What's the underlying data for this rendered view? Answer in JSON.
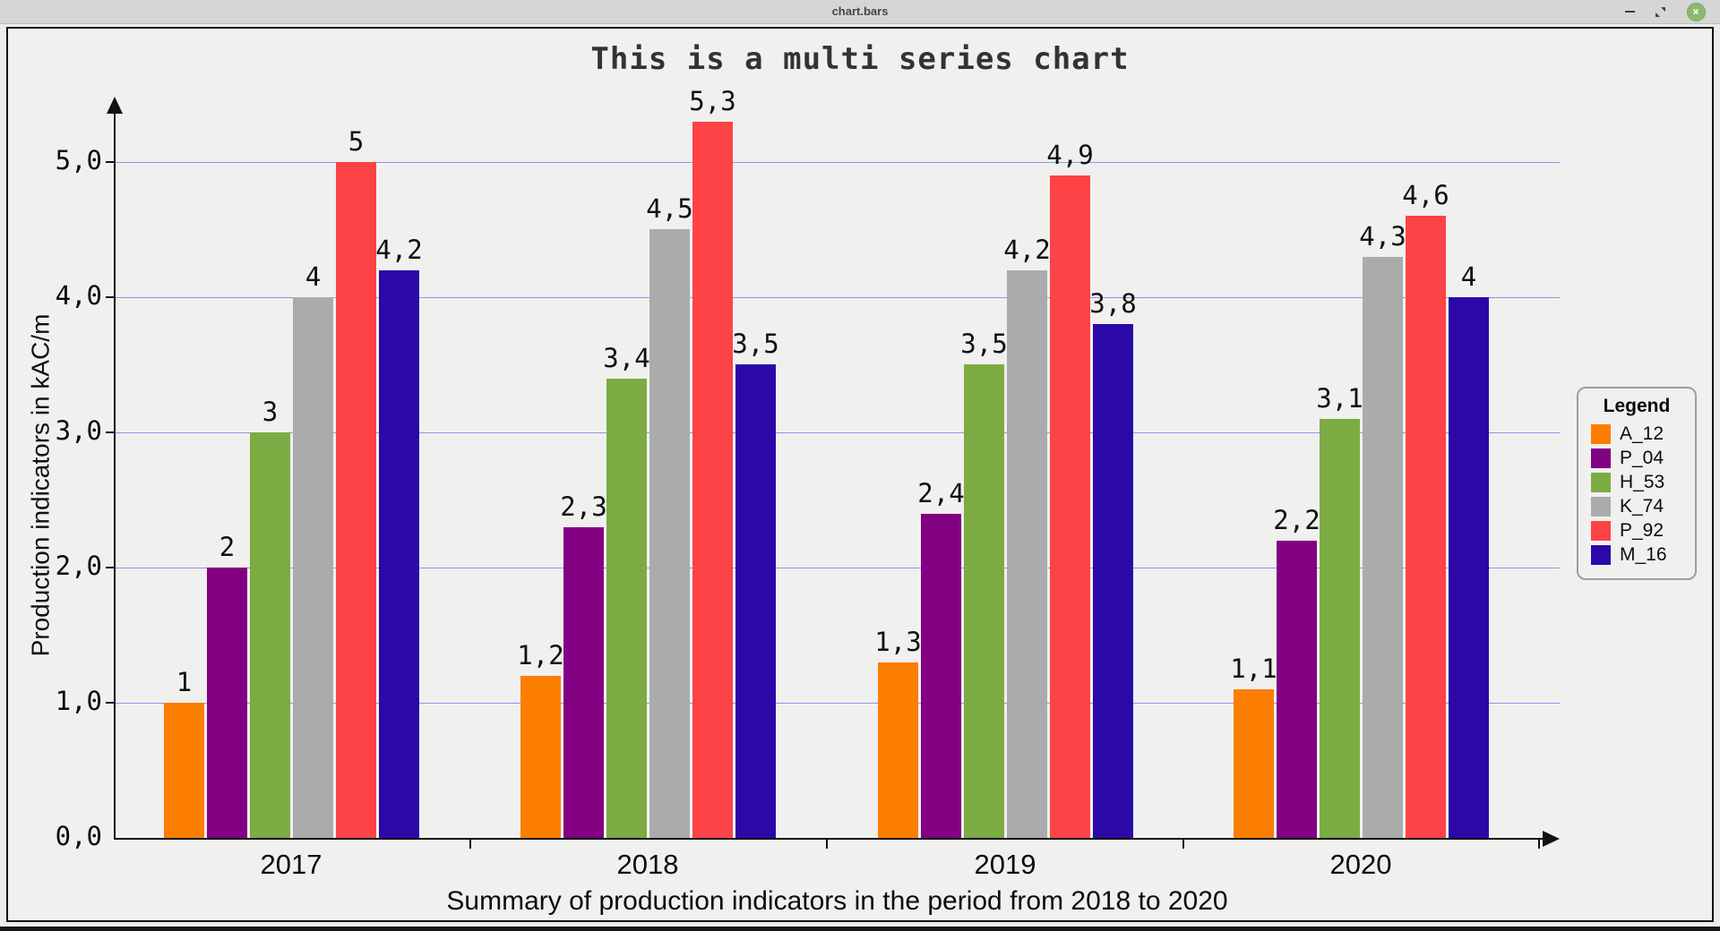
{
  "window": {
    "title": "chart.bars",
    "controls": {
      "minimize_label": "minimize",
      "maximize_label": "maximize",
      "close_glyph": "×"
    }
  },
  "legend": {
    "title": "Legend"
  },
  "chart_data": {
    "type": "bar",
    "title": "This is a multi series chart",
    "xlabel": "Summary of production indicators in the period from 2018 to 2020",
    "ylabel": "Production indicators in kAC/m",
    "categories": [
      "2017",
      "2018",
      "2019",
      "2020"
    ],
    "series": [
      {
        "name": "A_12",
        "color": "#fb7e00",
        "values": [
          1.0,
          1.2,
          1.3,
          1.1
        ],
        "display_values": [
          "1",
          "1,2",
          "1,3",
          "1,1"
        ]
      },
      {
        "name": "P_04",
        "color": "#830083",
        "values": [
          2.0,
          2.3,
          2.4,
          2.2
        ],
        "display_values": [
          "2",
          "2,3",
          "2,4",
          "2,2"
        ]
      },
      {
        "name": "H_53",
        "color": "#7cab43",
        "values": [
          3.0,
          3.4,
          3.5,
          3.1
        ],
        "display_values": [
          "3",
          "3,4",
          "3,5",
          "3,1"
        ]
      },
      {
        "name": "K_74",
        "color": "#ababab",
        "values": [
          4.0,
          4.5,
          4.2,
          4.3
        ],
        "display_values": [
          "4",
          "4,5",
          "4,2",
          "4,3"
        ]
      },
      {
        "name": "P_92",
        "color": "#fd4345",
        "values": [
          5.0,
          5.3,
          4.9,
          4.6
        ],
        "display_values": [
          "5",
          "5,3",
          "4,9",
          "4,6"
        ]
      },
      {
        "name": "M_16",
        "color": "#2d08a8",
        "values": [
          4.2,
          3.5,
          3.8,
          4.0
        ],
        "display_values": [
          "4,2",
          "3,5",
          "3,8",
          "4"
        ]
      }
    ],
    "ylim": [
      0,
      5.6
    ],
    "yticks": [
      "0,0",
      "1,0",
      "2,0",
      "3,0",
      "4,0",
      "5,0"
    ],
    "ytick_values": [
      0,
      1,
      2,
      3,
      4,
      5
    ],
    "grid": true,
    "gridline_color": "#9193ec",
    "legend_title": "Legend",
    "legend_position": "right",
    "background_color": "#f0f0ef"
  }
}
